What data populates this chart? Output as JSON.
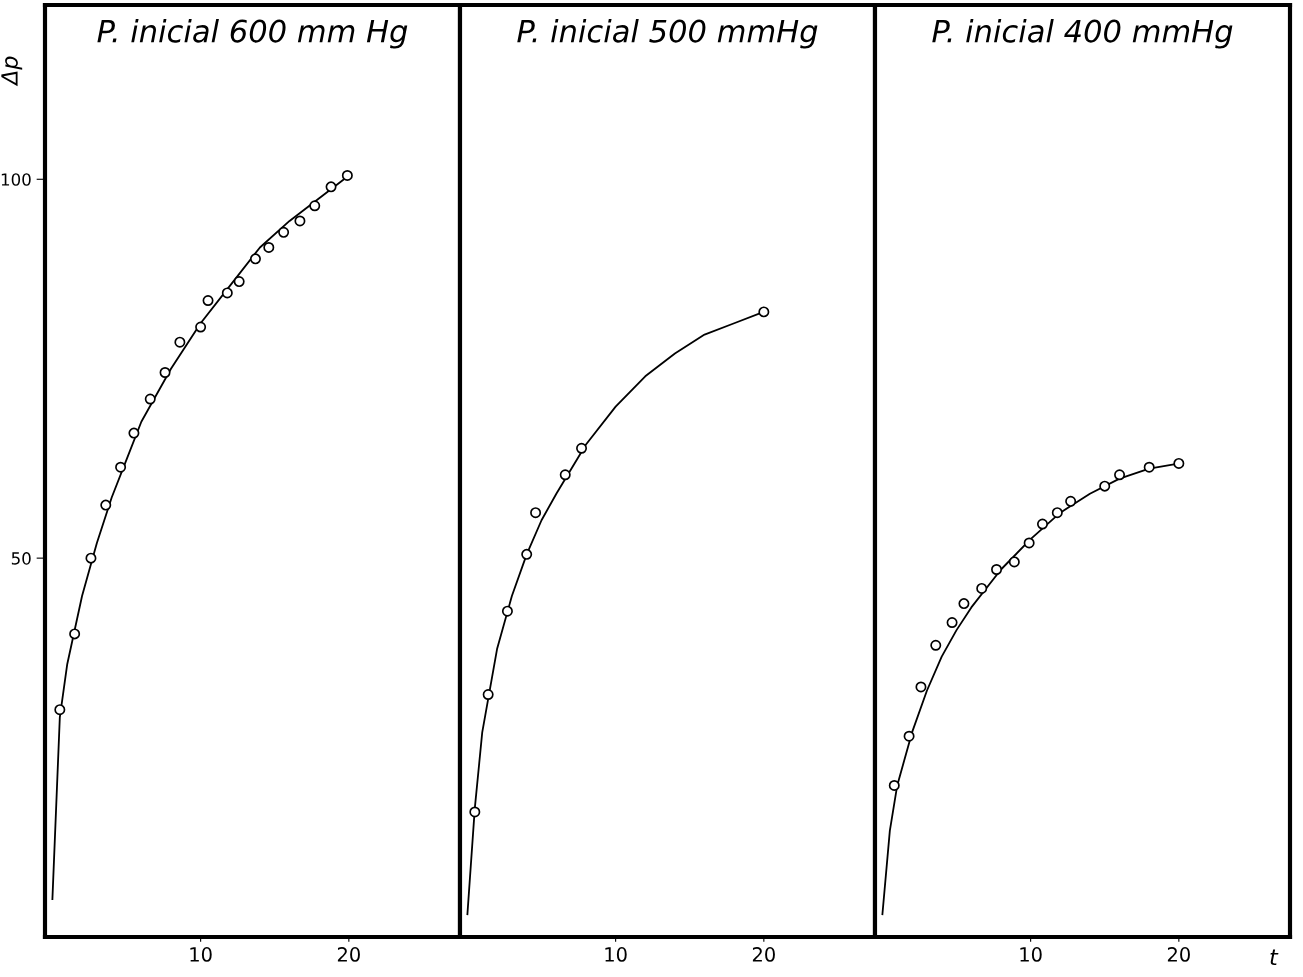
{
  "chart_data": [
    {
      "type": "scatter",
      "title": "P. inicial 600 mm Hg",
      "ylabel": "Δp",
      "xlim": [
        -0.5,
        27.5
      ],
      "ylim": [
        0,
        123
      ],
      "xticks": [
        10,
        20
      ],
      "yticks": [
        50,
        100
      ],
      "grid": false,
      "legend": false,
      "series": [
        {
          "marker": "circle",
          "color": "#000000",
          "x": [
            0.5,
            1.5,
            2.6,
            3.6,
            4.6,
            5.5,
            6.6,
            7.6,
            8.6,
            10.0,
            10.5,
            11.8,
            12.6,
            13.7,
            14.6,
            15.6,
            16.7,
            17.7,
            18.8,
            19.9
          ],
          "values": [
            30,
            40,
            50,
            57,
            62,
            66.5,
            71,
            74.5,
            78.5,
            80.5,
            84,
            85,
            86.5,
            89.5,
            91,
            93,
            94.5,
            96.5,
            99,
            100.5
          ]
        },
        {
          "type": "line",
          "marker": "none",
          "line_style": "solid",
          "color": "#000000",
          "x": [
            0,
            0.5,
            1,
            2,
            3,
            4,
            5,
            6,
            8,
            10,
            12,
            14,
            16,
            18,
            20
          ],
          "values": [
            5,
            29,
            36,
            45,
            52,
            58,
            63,
            68,
            75,
            81,
            86,
            91,
            94.5,
            97.5,
            100.5
          ]
        }
      ]
    },
    {
      "type": "scatter",
      "title": "P. inicial 500 mmHg",
      "xlim": [
        -0.5,
        27.5
      ],
      "ylim": [
        0,
        123
      ],
      "xticks": [
        10,
        20
      ],
      "yticks": [
        50,
        100
      ],
      "tick_labels": "x",
      "grid": false,
      "legend": false,
      "series": [
        {
          "marker": "circle",
          "color": "#000000",
          "x": [
            0.5,
            1.4,
            2.7,
            4.0,
            4.6,
            6.6,
            7.7,
            20
          ],
          "values": [
            16.5,
            32,
            43,
            50.5,
            56,
            61,
            64.5,
            82.5
          ]
        },
        {
          "type": "line",
          "marker": "none",
          "line_style": "solid",
          "color": "#000000",
          "x": [
            0,
            0.5,
            1,
            2,
            3,
            4,
            5,
            6,
            8,
            10,
            12,
            14,
            16,
            18,
            20
          ],
          "values": [
            3,
            17,
            27,
            38,
            45,
            50.5,
            55,
            58.5,
            65,
            70,
            74,
            77,
            79.5,
            81,
            82.5
          ]
        }
      ]
    },
    {
      "type": "scatter",
      "title": "P. inicial 400 mmHg",
      "xlabel": "t",
      "xlim": [
        -0.5,
        27.5
      ],
      "ylim": [
        0,
        123
      ],
      "xticks": [
        10,
        20
      ],
      "yticks": [
        50,
        100
      ],
      "tick_labels": "x",
      "grid": false,
      "legend": false,
      "series": [
        {
          "marker": "circle",
          "color": "#000000",
          "x": [
            0.8,
            1.8,
            2.6,
            3.6,
            4.7,
            5.5,
            6.7,
            7.7,
            8.9,
            9.9,
            10.8,
            11.8,
            12.7,
            15.0,
            16.0,
            18.0,
            20
          ],
          "values": [
            20,
            26.5,
            33,
            38.5,
            41.5,
            44,
            46,
            48.5,
            49.5,
            52,
            54.5,
            56,
            57.5,
            59.5,
            61,
            62,
            62.5
          ]
        },
        {
          "type": "line",
          "marker": "none",
          "line_style": "solid",
          "color": "#000000",
          "x": [
            0,
            0.5,
            1,
            2,
            3,
            4,
            5,
            6,
            8,
            10,
            12,
            14,
            16,
            18,
            20
          ],
          "values": [
            3,
            14,
            20,
            27,
            32.5,
            37,
            40.5,
            43.5,
            48.5,
            52.5,
            56,
            58.5,
            60.5,
            61.8,
            62.5
          ]
        }
      ]
    }
  ]
}
